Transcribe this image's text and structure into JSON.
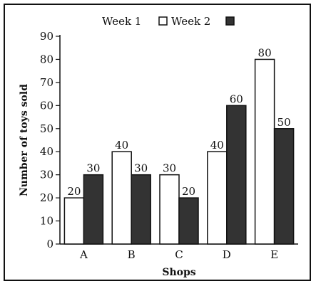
{
  "chart_data": {
    "type": "bar",
    "title": "",
    "xlabel": "Shops",
    "ylabel": "Number of toys sold",
    "categories": [
      "A",
      "B",
      "C",
      "D",
      "E"
    ],
    "series": [
      {
        "name": "Week 1",
        "values": [
          20,
          40,
          30,
          40,
          80
        ],
        "color": "#ffffff"
      },
      {
        "name": "Week 2",
        "values": [
          30,
          30,
          20,
          60,
          50
        ],
        "color": "#333333"
      }
    ],
    "ylim": [
      0,
      90
    ],
    "yticks": [
      0,
      10,
      20,
      30,
      40,
      50,
      60,
      70,
      80,
      90
    ],
    "grid": false,
    "legend": "top-center",
    "data_labels": true
  }
}
